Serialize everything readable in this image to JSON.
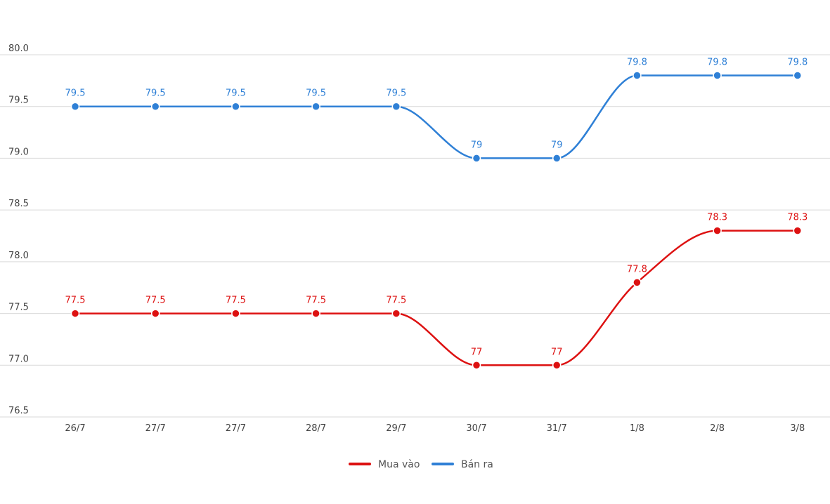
{
  "chart_data": {
    "type": "line",
    "title": "",
    "xlabel": "",
    "ylabel": "",
    "categories": [
      "26/7",
      "27/7",
      "27/7",
      "28/7",
      "29/7",
      "30/7",
      "31/7",
      "1/8",
      "2/8",
      "3/8"
    ],
    "ylim": [
      76.5,
      80.0
    ],
    "yticks": [
      "76.5",
      "77.0",
      "77.5",
      "78.0",
      "78.5",
      "79.0",
      "79.5",
      "80.0"
    ],
    "grid": true,
    "legend_position": "bottom",
    "series": [
      {
        "name": "Mua vào",
        "color": "#dd1111",
        "values": [
          77.5,
          77.5,
          77.5,
          77.5,
          77.5,
          77,
          77,
          77.8,
          78.3,
          78.3
        ],
        "labels": [
          "77.5",
          "77.5",
          "77.5",
          "77.5",
          "77.5",
          "77",
          "77",
          "77.8",
          "78.3",
          "78.3"
        ]
      },
      {
        "name": "Bán ra",
        "color": "#2f80d6",
        "values": [
          79.5,
          79.5,
          79.5,
          79.5,
          79.5,
          79,
          79,
          79.8,
          79.8,
          79.8
        ],
        "labels": [
          "79.5",
          "79.5",
          "79.5",
          "79.5",
          "79.5",
          "79",
          "79",
          "79.8",
          "79.8",
          "79.8"
        ]
      }
    ]
  }
}
